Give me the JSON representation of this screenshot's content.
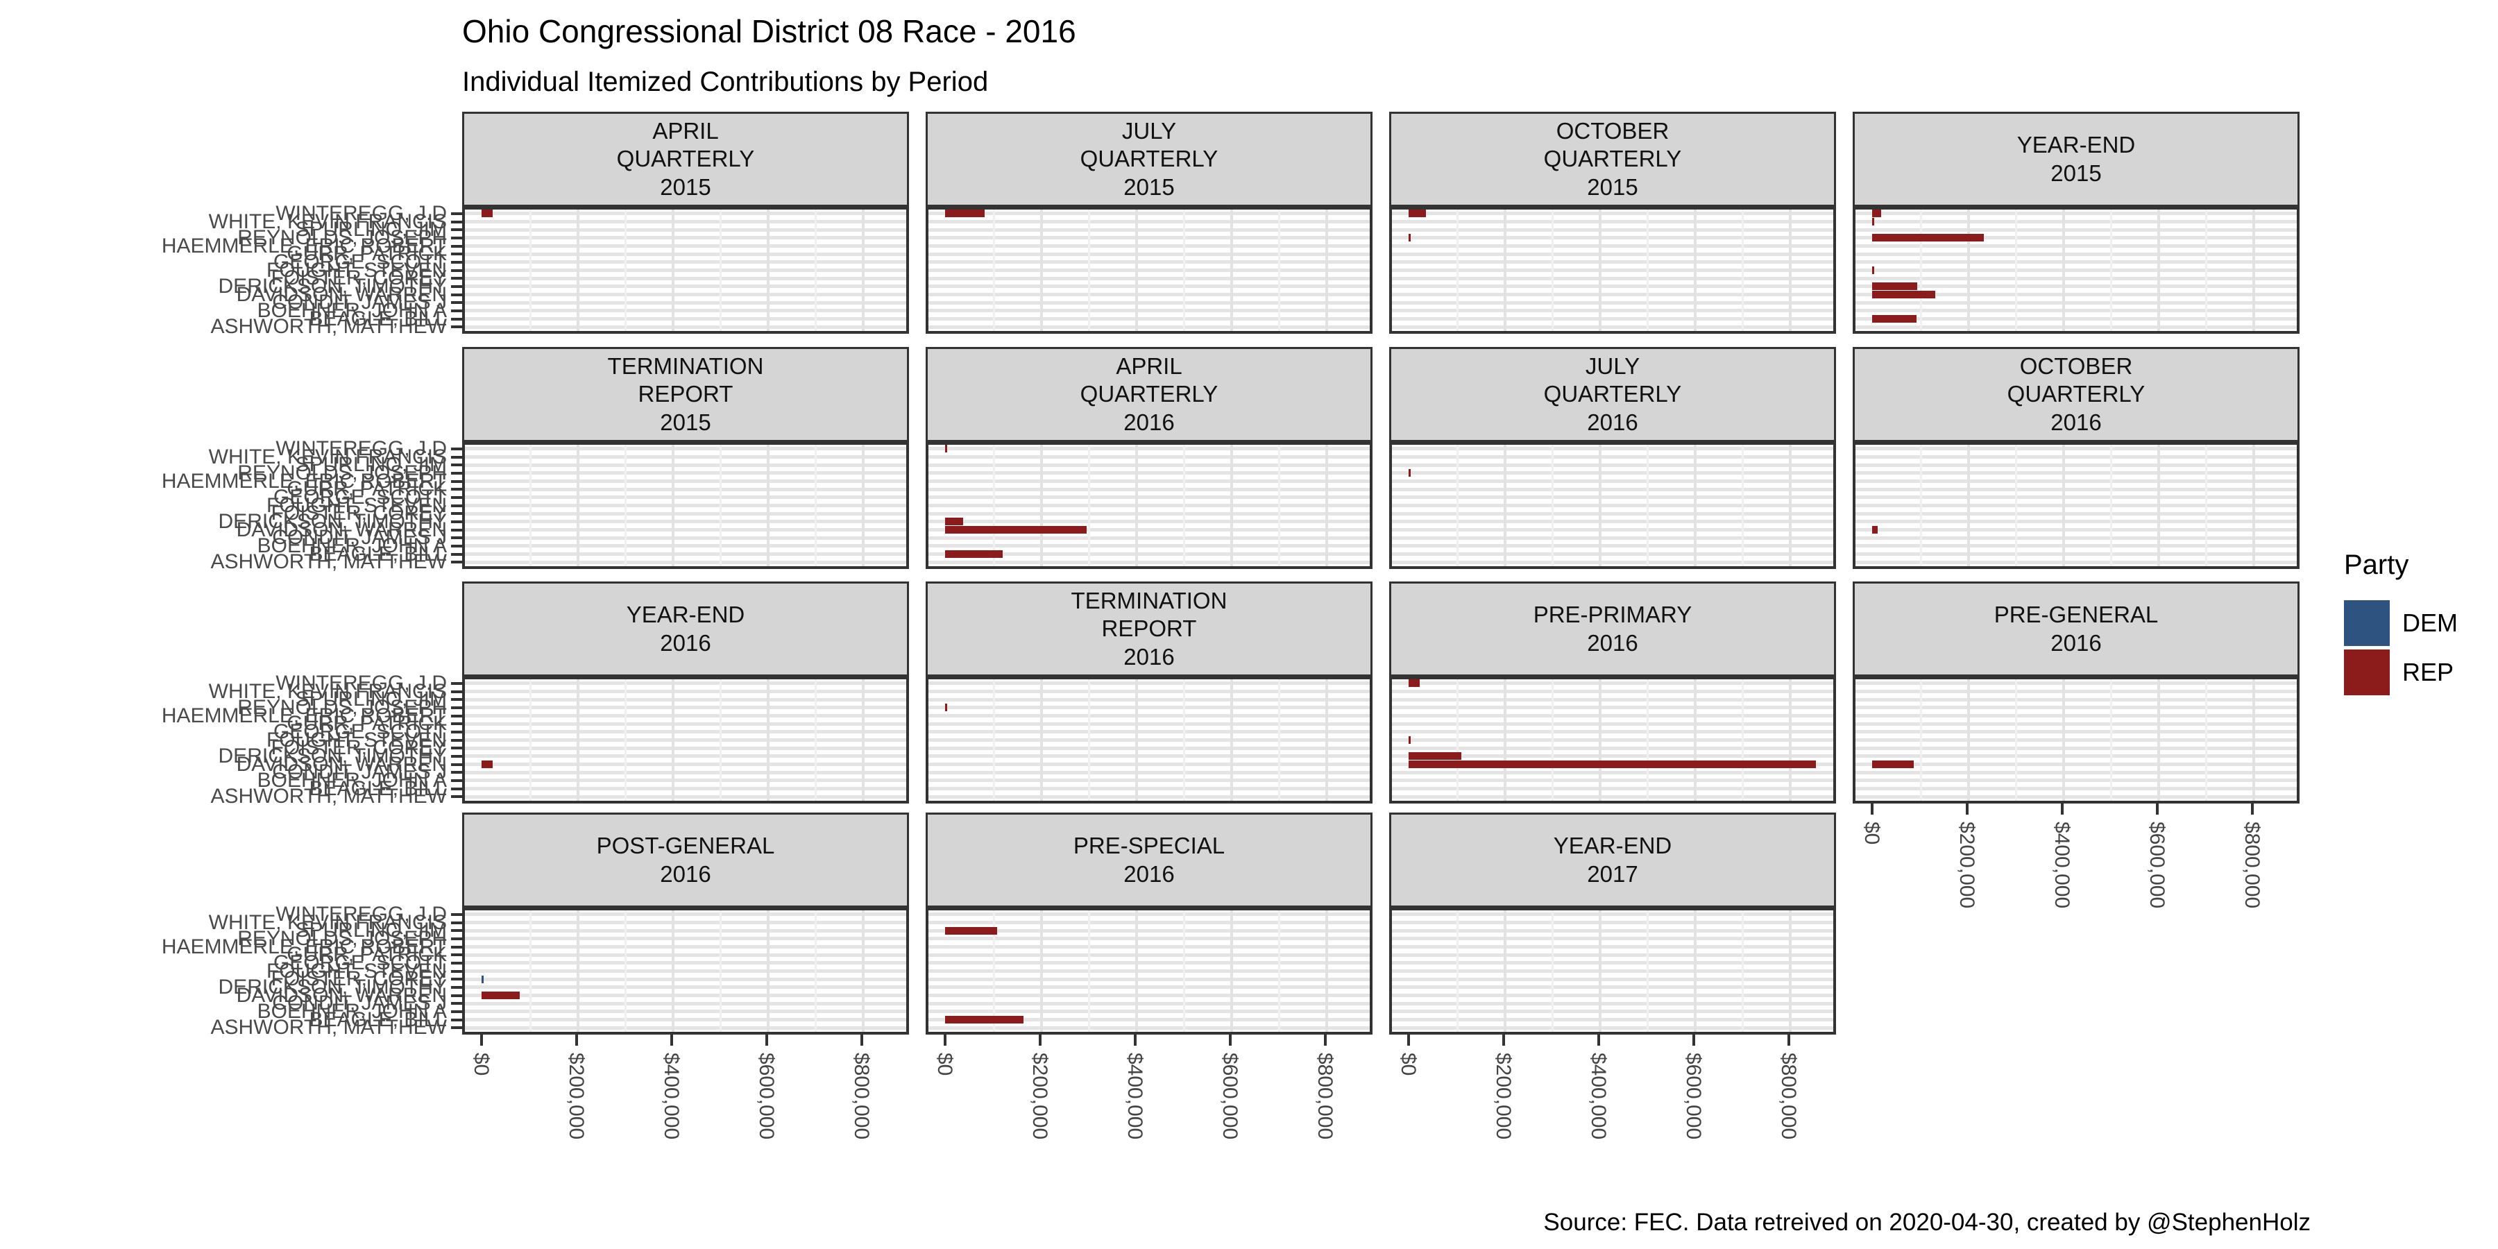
{
  "title": "Ohio Congressional District 08 Race - 2016",
  "subtitle": "Individual Itemized Contributions by Period",
  "caption": "Source: FEC. Data retreived on 2020-04-30, created by @StephenHolz",
  "legend": {
    "title": "Party",
    "items": [
      {
        "label": "DEM",
        "color": "#2E5380"
      },
      {
        "label": "REP",
        "color": "#8C1C1C"
      }
    ]
  },
  "chart_data": {
    "type": "bar",
    "orientation": "horizontal",
    "title": "Ohio Congressional District 08 Race - 2016",
    "subtitle": "Individual Itemized Contributions by Period",
    "legend_position": "right",
    "grid": true,
    "colors": {
      "DEM": "#2E5380",
      "REP": "#8C1C1C"
    },
    "categories": [
      "WINTEREGG, J.D",
      "WHITE, KEVIN FRANCIS",
      "SPURLINO, JIM",
      "REYNOLDS, JOSEPH",
      "HAEMMERLE, ERIC ROBERT",
      "GURR, PATRICK",
      "GEORGE, SCOTT",
      "FOUGHT, STEVEN",
      "FOISTER, COREY",
      "DERICKSON, TIMOTHY",
      "DAVIDSON, WARREN",
      "CONDIT, JAMES J",
      "BOEHNER, JOHN A",
      "BEAGLE, BILL",
      "ASHWORTH, MATTHEW"
    ],
    "x_axis": {
      "tick_labels": [
        "$0",
        "$200,000",
        "$400,000",
        "$600,000",
        "$800,000"
      ],
      "tick_values": [
        0,
        200000,
        400000,
        600000,
        800000
      ],
      "range": [
        0,
        900000
      ]
    },
    "facets": [
      {
        "title_lines": [
          "APRIL",
          "QUARTERLY",
          "2015"
        ],
        "bars": [
          {
            "row": 1,
            "party": "REP",
            "value": 23000
          }
        ]
      },
      {
        "title_lines": [
          "JULY",
          "QUARTERLY",
          "2015"
        ],
        "bars": [
          {
            "row": 1,
            "party": "REP",
            "value": 83000
          }
        ]
      },
      {
        "title_lines": [
          "OCTOBER",
          "QUARTERLY",
          "2015"
        ],
        "bars": [
          {
            "row": 1,
            "party": "REP",
            "value": 36500
          },
          {
            "row": 4,
            "party": "REP",
            "value": 2500
          }
        ]
      },
      {
        "title_lines": [
          "YEAR-END",
          "2015"
        ],
        "bars": [
          {
            "row": 1,
            "party": "REP",
            "value": 19000
          },
          {
            "row": 2,
            "party": "REP",
            "value": 2000
          },
          {
            "row": 4,
            "party": "REP",
            "value": 235000
          },
          {
            "row": 8,
            "party": "REP",
            "value": 1500
          },
          {
            "row": 10,
            "party": "REP",
            "value": 95000
          },
          {
            "row": 11,
            "party": "REP",
            "value": 133000
          },
          {
            "row": 14,
            "party": "REP",
            "value": 93500
          }
        ]
      },
      {
        "title_lines": [
          "TERMINATION",
          "REPORT",
          "2015"
        ],
        "bars": []
      },
      {
        "title_lines": [
          "APRIL",
          "QUARTERLY",
          "2016"
        ],
        "bars": [
          {
            "row": 1,
            "party": "REP",
            "value": 2000
          },
          {
            "row": 10,
            "party": "REP",
            "value": 38000
          },
          {
            "row": 11,
            "party": "REP",
            "value": 298000
          },
          {
            "row": 14,
            "party": "REP",
            "value": 121000
          }
        ]
      },
      {
        "title_lines": [
          "JULY",
          "QUARTERLY",
          "2016"
        ],
        "bars": [
          {
            "row": 4,
            "party": "REP",
            "value": 2500
          }
        ]
      },
      {
        "title_lines": [
          "OCTOBER",
          "QUARTERLY",
          "2016"
        ],
        "bars": [
          {
            "row": 11,
            "party": "REP",
            "value": 11500
          }
        ]
      },
      {
        "title_lines": [
          "YEAR-END",
          "2016"
        ],
        "bars": [
          {
            "row": 11,
            "party": "REP",
            "value": 23500
          }
        ]
      },
      {
        "title_lines": [
          "TERMINATION",
          "REPORT",
          "2016"
        ],
        "bars": [
          {
            "row": 4,
            "party": "REP",
            "value": 2500
          }
        ]
      },
      {
        "title_lines": [
          "PRE-PRIMARY",
          "2016"
        ],
        "bars": [
          {
            "row": 1,
            "party": "REP",
            "value": 23500
          },
          {
            "row": 8,
            "party": "REP",
            "value": 1500
          },
          {
            "row": 10,
            "party": "REP",
            "value": 111000
          },
          {
            "row": 11,
            "party": "REP",
            "value": 857000
          }
        ]
      },
      {
        "title_lines": [
          "PRE-GENERAL",
          "2016"
        ],
        "bars": [
          {
            "row": 11,
            "party": "REP",
            "value": 87500
          }
        ]
      },
      {
        "title_lines": [
          "POST-GENERAL",
          "2016"
        ],
        "bars": [
          {
            "row": 9,
            "party": "DEM",
            "value": 2000
          },
          {
            "row": 11,
            "party": "REP",
            "value": 80000
          }
        ]
      },
      {
        "title_lines": [
          "PRE-SPECIAL",
          "2016"
        ],
        "bars": [
          {
            "row": 3,
            "party": "REP",
            "value": 109500
          },
          {
            "row": 14,
            "party": "REP",
            "value": 165000
          }
        ]
      },
      {
        "title_lines": [
          "YEAR-END",
          "2017"
        ],
        "bars": []
      }
    ]
  }
}
